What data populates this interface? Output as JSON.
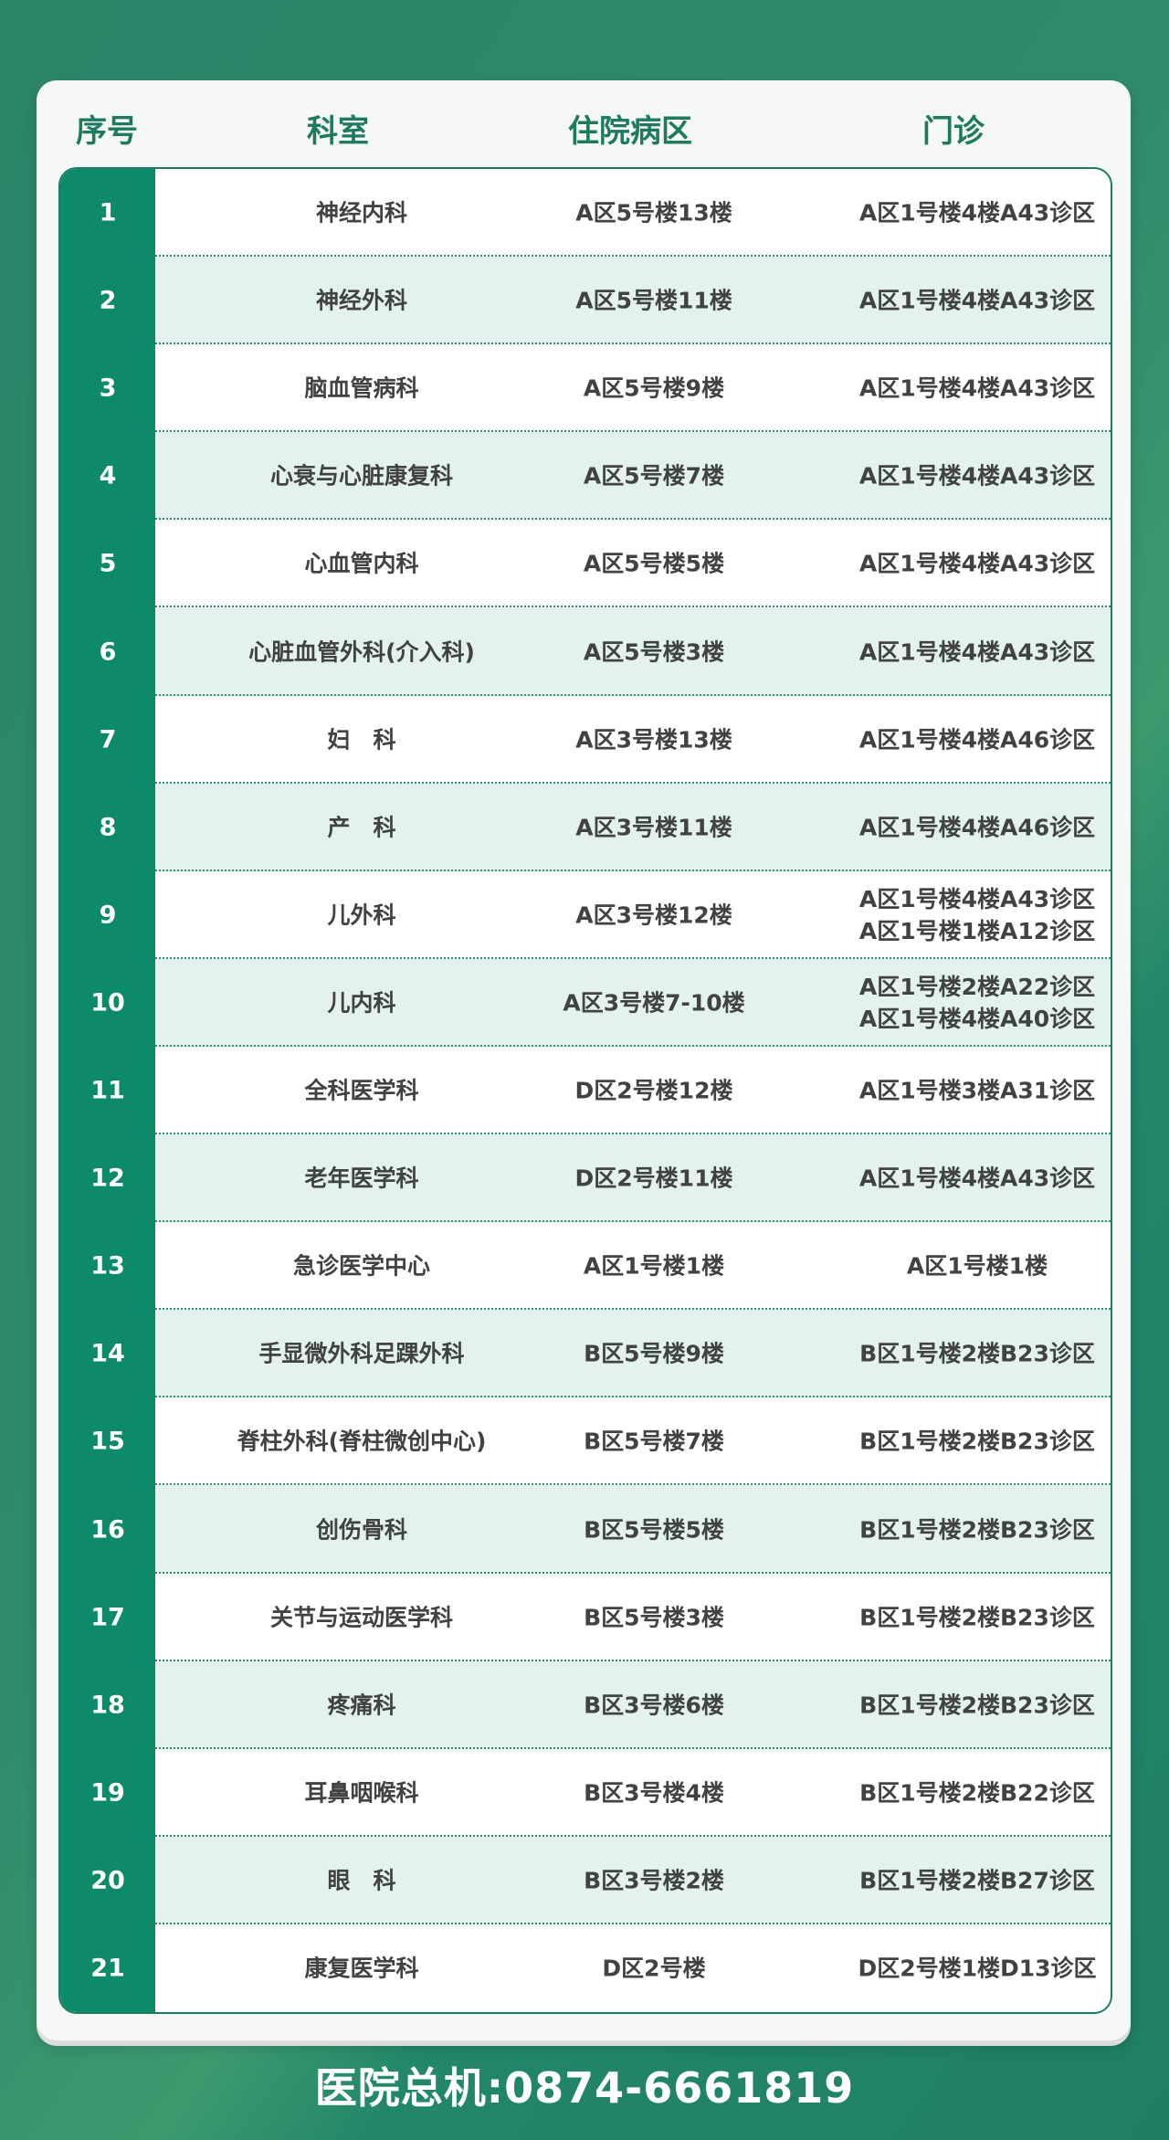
{
  "header": {
    "col_no": "序号",
    "col_dept": "科室",
    "col_ward": "住院病区",
    "col_clinic": "门诊"
  },
  "rows": [
    {
      "no": "1",
      "dept": "神经内科",
      "ward": "A区5号楼13楼",
      "clinic": [
        "A区1号楼4楼A43诊区"
      ]
    },
    {
      "no": "2",
      "dept": "神经外科",
      "ward": "A区5号楼11楼",
      "clinic": [
        "A区1号楼4楼A43诊区"
      ]
    },
    {
      "no": "3",
      "dept": "脑血管病科",
      "ward": "A区5号楼9楼",
      "clinic": [
        "A区1号楼4楼A43诊区"
      ]
    },
    {
      "no": "4",
      "dept": "心衰与心脏康复科",
      "ward": "A区5号楼7楼",
      "clinic": [
        "A区1号楼4楼A43诊区"
      ]
    },
    {
      "no": "5",
      "dept": "心血管内科",
      "ward": "A区5号楼5楼",
      "clinic": [
        "A区1号楼4楼A43诊区"
      ]
    },
    {
      "no": "6",
      "dept": "心脏血管外科(介入科)",
      "ward": "A区5号楼3楼",
      "clinic": [
        "A区1号楼4楼A43诊区"
      ]
    },
    {
      "no": "7",
      "dept": "妇　科",
      "ward": "A区3号楼13楼",
      "clinic": [
        "A区1号楼4楼A46诊区"
      ]
    },
    {
      "no": "8",
      "dept": "产　科",
      "ward": "A区3号楼11楼",
      "clinic": [
        "A区1号楼4楼A46诊区"
      ]
    },
    {
      "no": "9",
      "dept": "儿外科",
      "ward": "A区3号楼12楼",
      "clinic": [
        "A区1号楼4楼A43诊区",
        "A区1号楼1楼A12诊区"
      ]
    },
    {
      "no": "10",
      "dept": "儿内科",
      "ward": "A区3号楼7-10楼",
      "clinic": [
        "A区1号楼2楼A22诊区",
        "A区1号楼4楼A40诊区"
      ]
    },
    {
      "no": "11",
      "dept": "全科医学科",
      "ward": "D区2号楼12楼",
      "clinic": [
        "A区1号楼3楼A31诊区"
      ]
    },
    {
      "no": "12",
      "dept": "老年医学科",
      "ward": "D区2号楼11楼",
      "clinic": [
        "A区1号楼4楼A43诊区"
      ]
    },
    {
      "no": "13",
      "dept": "急诊医学中心",
      "ward": "A区1号楼1楼",
      "clinic": [
        "A区1号楼1楼"
      ]
    },
    {
      "no": "14",
      "dept": "手显微外科足踝外科",
      "ward": "B区5号楼9楼",
      "clinic": [
        "B区1号楼2楼B23诊区"
      ]
    },
    {
      "no": "15",
      "dept": "脊柱外科(脊柱微创中心)",
      "ward": "B区5号楼7楼",
      "clinic": [
        "B区1号楼2楼B23诊区"
      ]
    },
    {
      "no": "16",
      "dept": "创伤骨科",
      "ward": "B区5号楼5楼",
      "clinic": [
        "B区1号楼2楼B23诊区"
      ]
    },
    {
      "no": "17",
      "dept": "关节与运动医学科",
      "ward": "B区5号楼3楼",
      "clinic": [
        "B区1号楼2楼B23诊区"
      ]
    },
    {
      "no": "18",
      "dept": "疼痛科",
      "ward": "B区3号楼6楼",
      "clinic": [
        "B区1号楼2楼B23诊区"
      ]
    },
    {
      "no": "19",
      "dept": "耳鼻咽喉科",
      "ward": "B区3号楼4楼",
      "clinic": [
        "B区1号楼2楼B22诊区"
      ]
    },
    {
      "no": "20",
      "dept": "眼　科",
      "ward": "B区3号楼2楼",
      "clinic": [
        "B区1号楼2楼B27诊区"
      ]
    },
    {
      "no": "21",
      "dept": "康复医学科",
      "ward": "D区2号楼",
      "clinic": [
        "D区2号楼1楼D13诊区"
      ]
    }
  ],
  "footer": {
    "hotline": "医院总机:0874-6661819"
  },
  "colors": {
    "background": "#2c8469",
    "number_column": "#0d8a6a",
    "header_text": "#1e7a5f",
    "alt_row": "#e3f2ef"
  }
}
